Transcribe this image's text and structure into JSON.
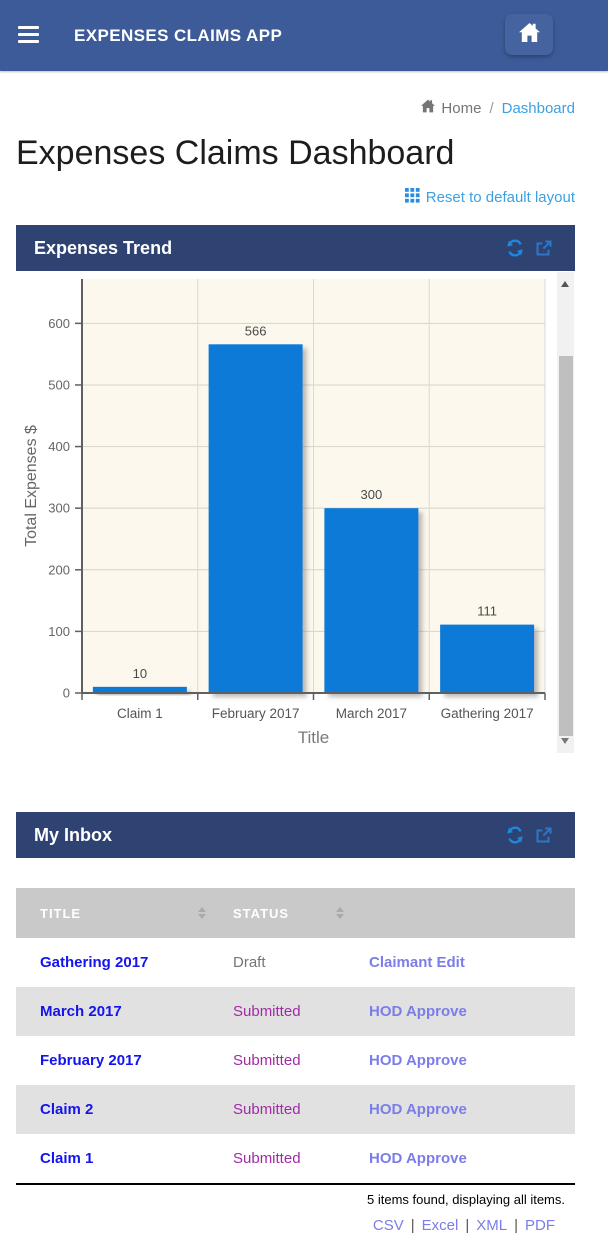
{
  "navbar": {
    "title": "EXPENSES CLAIMS APP"
  },
  "breadcrumb": {
    "home": "Home",
    "separator": "/",
    "current": "Dashboard"
  },
  "page": {
    "title": "Expenses Claims Dashboard",
    "reset_layout_label": "Reset to default layout"
  },
  "trend_panel": {
    "title": "Expenses Trend"
  },
  "inbox_panel": {
    "title": "My Inbox"
  },
  "chart_data": {
    "type": "bar",
    "categories": [
      "Claim 1",
      "February 2017",
      "March 2017",
      "Gathering 2017"
    ],
    "values": [
      10,
      566,
      300,
      111
    ],
    "value_labels": [
      "10",
      "566",
      "300",
      "111"
    ],
    "title": "",
    "xlabel": "Title",
    "ylabel": "Total Expenses $",
    "yticks": [
      0,
      100,
      200,
      300,
      400,
      500,
      600
    ],
    "ylim": [
      0,
      672
    ],
    "grid": true,
    "legend": false,
    "bar_color": "#0a7ad8",
    "plot_bg": "#fcf8ee"
  },
  "inbox_table": {
    "columns": [
      {
        "label": "TITLE",
        "sortable": true
      },
      {
        "label": "STATUS",
        "sortable": true
      },
      {
        "label": "",
        "sortable": false
      }
    ],
    "rows": [
      {
        "title": "Gathering 2017",
        "status": "Draft",
        "status_type": "draft",
        "action": "Claimant Edit"
      },
      {
        "title": "March 2017",
        "status": "Submitted",
        "status_type": "submitted",
        "action": "HOD Approve"
      },
      {
        "title": "February 2017",
        "status": "Submitted",
        "status_type": "submitted",
        "action": "HOD Approve"
      },
      {
        "title": "Claim 2",
        "status": "Submitted",
        "status_type": "submitted",
        "action": "HOD Approve"
      },
      {
        "title": "Claim 1",
        "status": "Submitted",
        "status_type": "submitted",
        "action": "HOD Approve"
      }
    ],
    "summary": "5 items found, displaying all items.",
    "export": {
      "separator": "|",
      "links": [
        "CSV",
        "Excel",
        "XML",
        "PDF"
      ]
    }
  },
  "icons": {
    "menu": "hamburger-menu",
    "home": "house",
    "refresh": "circular-arrows",
    "popout": "external-link",
    "reset_grid": "3x3-grid",
    "sort": "up-down-arrows"
  },
  "colors": {
    "navbar-bg": "#3c5b98",
    "navbar-btn-bg": "#44639f",
    "panel-header-bg": "#2e4372",
    "link-blue": "#3da0e2",
    "refresh-blue": "#1e88e0",
    "popout-blue": "#2e77c8",
    "title-link": "#1414ee",
    "action-link": "#7b7de8",
    "status-draft": "#757575",
    "status-submitted": "#a12ba5",
    "table-header-bg": "#c9c9c9",
    "row-alt-bg": "#e1e1e1",
    "bar-color": "#0a7ad8",
    "chart-plot-bg": "#fcf8ee"
  }
}
